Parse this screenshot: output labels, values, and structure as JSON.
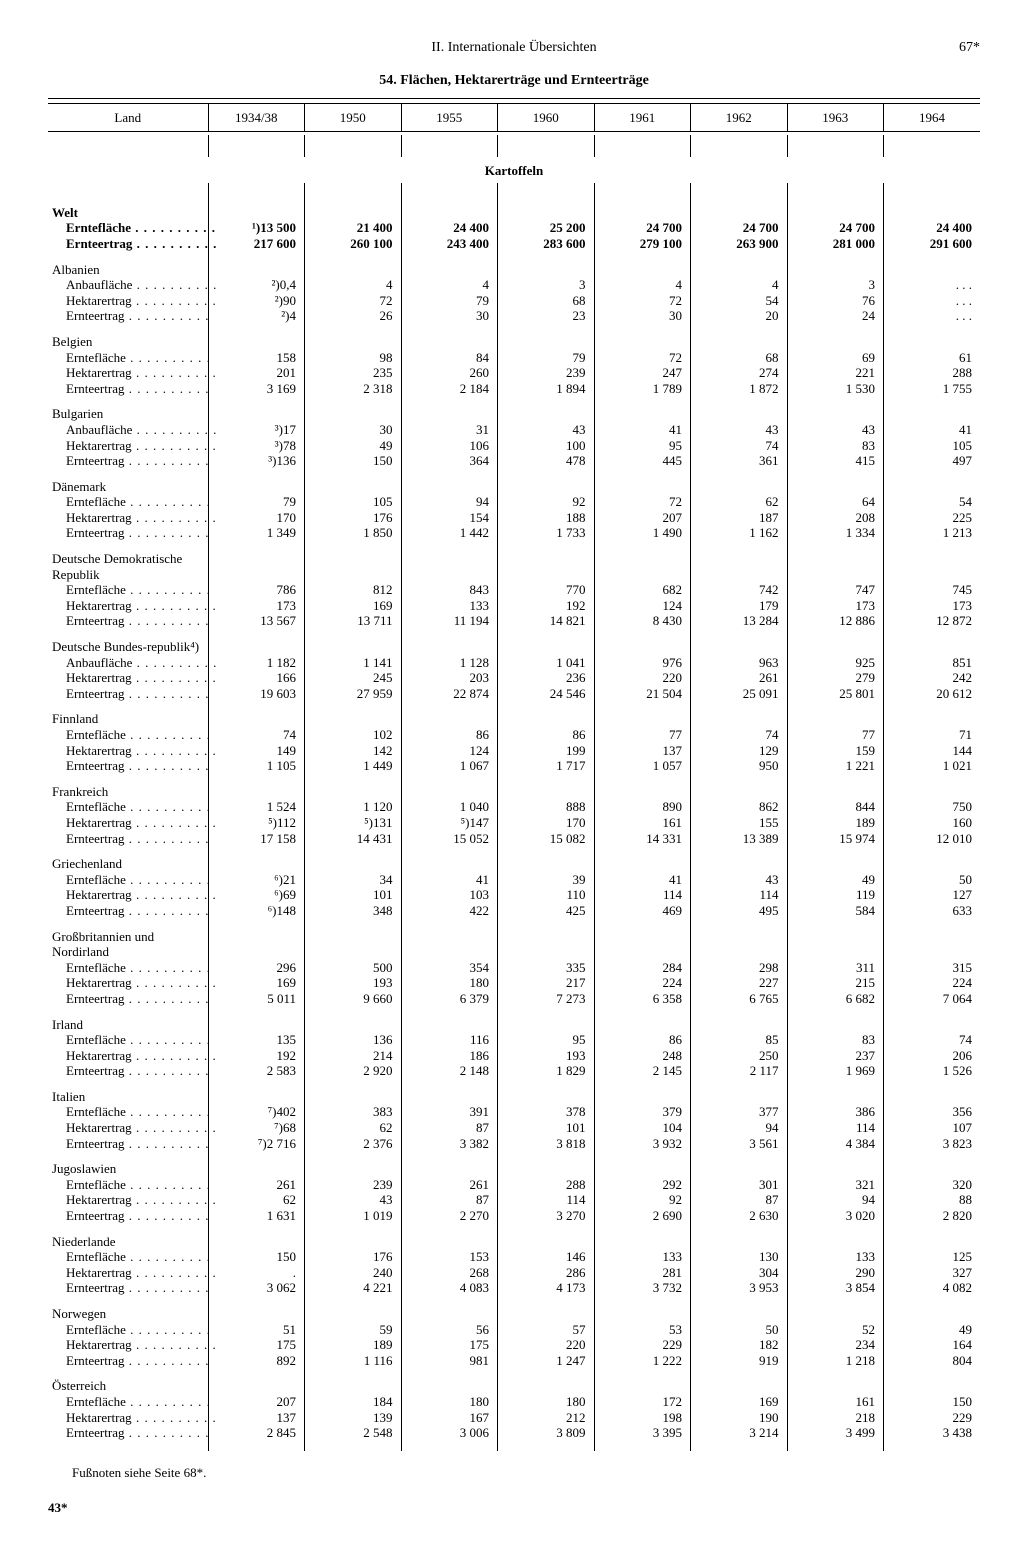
{
  "header": {
    "section": "II. Internationale Übersichten",
    "page": "67*",
    "title": "54. Flächen, Hektarerträge und Ernteerträge"
  },
  "columns": [
    "Land",
    "1934/38",
    "1950",
    "1955",
    "1960",
    "1961",
    "1962",
    "1963",
    "1964"
  ],
  "crop": "Kartoffeln",
  "footnote": "Fußnoten siehe Seite 68*.",
  "signature": "43*",
  "metric_labels": {
    "area": "Erntefläche",
    "cult": "Anbaufläche",
    "yield": "Hektarertrag",
    "harvest": "Ernteertrag"
  },
  "rows": [
    {
      "name": "Welt",
      "bold": true,
      "metrics": [
        {
          "label": "area",
          "v": [
            "¹)13 500",
            "21 400",
            "24 400",
            "25 200",
            "24 700",
            "24 700",
            "24 700",
            "24 400"
          ]
        },
        {
          "label": "harvest",
          "v": [
            "217 600",
            "260 100",
            "243 400",
            "283 600",
            "279 100",
            "263 900",
            "281 000",
            "291 600"
          ]
        }
      ]
    },
    {
      "name": "Albanien",
      "metrics": [
        {
          "label": "cult",
          "v": [
            "²)0,4",
            "4",
            "4",
            "3",
            "4",
            "4",
            "3",
            ". . ."
          ]
        },
        {
          "label": "yield",
          "v": [
            "²)90",
            "72",
            "79",
            "68",
            "72",
            "54",
            "76",
            ". . ."
          ]
        },
        {
          "label": "harvest",
          "v": [
            "²)4",
            "26",
            "30",
            "23",
            "30",
            "20",
            "24",
            ". . ."
          ]
        }
      ]
    },
    {
      "name": "Belgien",
      "metrics": [
        {
          "label": "area",
          "v": [
            "158",
            "98",
            "84",
            "79",
            "72",
            "68",
            "69",
            "61"
          ]
        },
        {
          "label": "yield",
          "v": [
            "201",
            "235",
            "260",
            "239",
            "247",
            "274",
            "221",
            "288"
          ]
        },
        {
          "label": "harvest",
          "v": [
            "3 169",
            "2 318",
            "2 184",
            "1 894",
            "1 789",
            "1 872",
            "1 530",
            "1 755"
          ]
        }
      ]
    },
    {
      "name": "Bulgarien",
      "metrics": [
        {
          "label": "cult",
          "v": [
            "³)17",
            "30",
            "31",
            "43",
            "41",
            "43",
            "43",
            "41"
          ]
        },
        {
          "label": "yield",
          "v": [
            "³)78",
            "49",
            "106",
            "100",
            "95",
            "74",
            "83",
            "105"
          ]
        },
        {
          "label": "harvest",
          "v": [
            "³)136",
            "150",
            "364",
            "478",
            "445",
            "361",
            "415",
            "497"
          ]
        }
      ]
    },
    {
      "name": "Dänemark",
      "metrics": [
        {
          "label": "area",
          "v": [
            "79",
            "105",
            "94",
            "92",
            "72",
            "62",
            "64",
            "54"
          ]
        },
        {
          "label": "yield",
          "v": [
            "170",
            "176",
            "154",
            "188",
            "207",
            "187",
            "208",
            "225"
          ]
        },
        {
          "label": "harvest",
          "v": [
            "1 349",
            "1 850",
            "1 442",
            "1 733",
            "1 490",
            "1 162",
            "1 334",
            "1 213"
          ]
        }
      ]
    },
    {
      "name": "Deutsche Demokratische Republik",
      "metrics": [
        {
          "label": "area",
          "v": [
            "786",
            "812",
            "843",
            "770",
            "682",
            "742",
            "747",
            "745"
          ]
        },
        {
          "label": "yield",
          "v": [
            "173",
            "169",
            "133",
            "192",
            "124",
            "179",
            "173",
            "173"
          ]
        },
        {
          "label": "harvest",
          "v": [
            "13 567",
            "13 711",
            "11 194",
            "14 821",
            "8 430",
            "13 284",
            "12 886",
            "12 872"
          ]
        }
      ]
    },
    {
      "name": "Deutsche Bundes-republik⁴)",
      "metrics": [
        {
          "label": "cult",
          "v": [
            "1 182",
            "1 141",
            "1 128",
            "1 041",
            "976",
            "963",
            "925",
            "851"
          ]
        },
        {
          "label": "yield",
          "v": [
            "166",
            "245",
            "203",
            "236",
            "220",
            "261",
            "279",
            "242"
          ]
        },
        {
          "label": "harvest",
          "v": [
            "19 603",
            "27 959",
            "22 874",
            "24 546",
            "21 504",
            "25 091",
            "25 801",
            "20 612"
          ]
        }
      ]
    },
    {
      "name": "Finnland",
      "metrics": [
        {
          "label": "area",
          "v": [
            "74",
            "102",
            "86",
            "86",
            "77",
            "74",
            "77",
            "71"
          ]
        },
        {
          "label": "yield",
          "v": [
            "149",
            "142",
            "124",
            "199",
            "137",
            "129",
            "159",
            "144"
          ]
        },
        {
          "label": "harvest",
          "v": [
            "1 105",
            "1 449",
            "1 067",
            "1 717",
            "1 057",
            "950",
            "1 221",
            "1 021"
          ]
        }
      ]
    },
    {
      "name": "Frankreich",
      "metrics": [
        {
          "label": "area",
          "v": [
            "1 524",
            "1 120",
            "1 040",
            "888",
            "890",
            "862",
            "844",
            "750"
          ]
        },
        {
          "label": "yield",
          "v": [
            "⁵)112",
            "⁵)131",
            "⁵)147",
            "170",
            "161",
            "155",
            "189",
            "160"
          ]
        },
        {
          "label": "harvest",
          "v": [
            "17 158",
            "14 431",
            "15 052",
            "15 082",
            "14 331",
            "13 389",
            "15 974",
            "12 010"
          ]
        }
      ]
    },
    {
      "name": "Griechenland",
      "metrics": [
        {
          "label": "area",
          "v": [
            "⁶)21",
            "34",
            "41",
            "39",
            "41",
            "43",
            "49",
            "50"
          ]
        },
        {
          "label": "yield",
          "v": [
            "⁶)69",
            "101",
            "103",
            "110",
            "114",
            "114",
            "119",
            "127"
          ]
        },
        {
          "label": "harvest",
          "v": [
            "⁶)148",
            "348",
            "422",
            "425",
            "469",
            "495",
            "584",
            "633"
          ]
        }
      ]
    },
    {
      "name": "Großbritannien und Nordirland",
      "metrics": [
        {
          "label": "area",
          "v": [
            "296",
            "500",
            "354",
            "335",
            "284",
            "298",
            "311",
            "315"
          ]
        },
        {
          "label": "yield",
          "v": [
            "169",
            "193",
            "180",
            "217",
            "224",
            "227",
            "215",
            "224"
          ]
        },
        {
          "label": "harvest",
          "v": [
            "5 011",
            "9 660",
            "6 379",
            "7 273",
            "6 358",
            "6 765",
            "6 682",
            "7 064"
          ]
        }
      ]
    },
    {
      "name": "Irland",
      "metrics": [
        {
          "label": "area",
          "v": [
            "135",
            "136",
            "116",
            "95",
            "86",
            "85",
            "83",
            "74"
          ]
        },
        {
          "label": "yield",
          "v": [
            "192",
            "214",
            "186",
            "193",
            "248",
            "250",
            "237",
            "206"
          ]
        },
        {
          "label": "harvest",
          "v": [
            "2 583",
            "2 920",
            "2 148",
            "1 829",
            "2 145",
            "2 117",
            "1 969",
            "1 526"
          ]
        }
      ]
    },
    {
      "name": "Italien",
      "metrics": [
        {
          "label": "area",
          "v": [
            "⁷)402",
            "383",
            "391",
            "378",
            "379",
            "377",
            "386",
            "356"
          ]
        },
        {
          "label": "yield",
          "v": [
            "⁷)68",
            "62",
            "87",
            "101",
            "104",
            "94",
            "114",
            "107"
          ]
        },
        {
          "label": "harvest",
          "v": [
            "⁷)2 716",
            "2 376",
            "3 382",
            "3 818",
            "3 932",
            "3 561",
            "4 384",
            "3 823"
          ]
        }
      ]
    },
    {
      "name": "Jugoslawien",
      "metrics": [
        {
          "label": "area",
          "v": [
            "261",
            "239",
            "261",
            "288",
            "292",
            "301",
            "321",
            "320"
          ]
        },
        {
          "label": "yield",
          "v": [
            "62",
            "43",
            "87",
            "114",
            "92",
            "87",
            "94",
            "88"
          ]
        },
        {
          "label": "harvest",
          "v": [
            "1 631",
            "1 019",
            "2 270",
            "3 270",
            "2 690",
            "2 630",
            "3 020",
            "2 820"
          ]
        }
      ]
    },
    {
      "name": "Niederlande",
      "metrics": [
        {
          "label": "area",
          "v": [
            "150",
            "176",
            "153",
            "146",
            "133",
            "130",
            "133",
            "125"
          ]
        },
        {
          "label": "yield",
          "v": [
            ".",
            "240",
            "268",
            "286",
            "281",
            "304",
            "290",
            "327"
          ]
        },
        {
          "label": "harvest",
          "v": [
            "3 062",
            "4 221",
            "4 083",
            "4 173",
            "3 732",
            "3 953",
            "3 854",
            "4 082"
          ]
        }
      ]
    },
    {
      "name": "Norwegen",
      "metrics": [
        {
          "label": "area",
          "v": [
            "51",
            "59",
            "56",
            "57",
            "53",
            "50",
            "52",
            "49"
          ]
        },
        {
          "label": "yield",
          "v": [
            "175",
            "189",
            "175",
            "220",
            "229",
            "182",
            "234",
            "164"
          ]
        },
        {
          "label": "harvest",
          "v": [
            "892",
            "1 116",
            "981",
            "1 247",
            "1 222",
            "919",
            "1 218",
            "804"
          ]
        }
      ]
    },
    {
      "name": "Österreich",
      "metrics": [
        {
          "label": "area",
          "v": [
            "207",
            "184",
            "180",
            "180",
            "172",
            "169",
            "161",
            "150"
          ]
        },
        {
          "label": "yield",
          "v": [
            "137",
            "139",
            "167",
            "212",
            "198",
            "190",
            "218",
            "229"
          ]
        },
        {
          "label": "harvest",
          "v": [
            "2 845",
            "2 548",
            "3 006",
            "3 809",
            "3 395",
            "3 214",
            "3 499",
            "3 438"
          ]
        }
      ]
    }
  ]
}
